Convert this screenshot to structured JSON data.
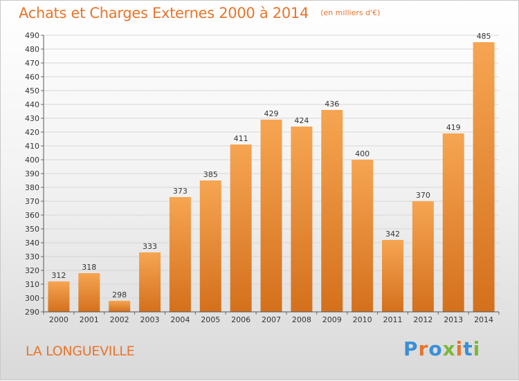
{
  "header": {
    "title": "Achats et Charges Externes 2000 à 2014",
    "unit": "(en milliers d'€)"
  },
  "footer": {
    "commune": "LA LONGUEVILLE",
    "logo_text": "Proxiti"
  },
  "colors": {
    "bar_top": "#f6a552",
    "bar_bottom": "#d4701c",
    "title": "#e8742a",
    "logo": [
      "#3a8fd6",
      "#e8742a",
      "#3a8fd6",
      "#7ab83a",
      "#e8742a",
      "#3a8fd6",
      "#7ab83a"
    ]
  },
  "chart_data": {
    "type": "bar",
    "title": "Achats et Charges Externes 2000 à 2014",
    "xlabel": "",
    "ylabel": "",
    "categories": [
      "2000",
      "2001",
      "2002",
      "2003",
      "2004",
      "2005",
      "2006",
      "2007",
      "2008",
      "2009",
      "2010",
      "2011",
      "2012",
      "2013",
      "2014"
    ],
    "values": [
      312,
      318,
      298,
      333,
      373,
      385,
      411,
      429,
      424,
      436,
      400,
      342,
      370,
      419,
      485
    ],
    "ylim": [
      290,
      490
    ],
    "ytick_step": 10,
    "grid": true,
    "data_labels": true
  }
}
